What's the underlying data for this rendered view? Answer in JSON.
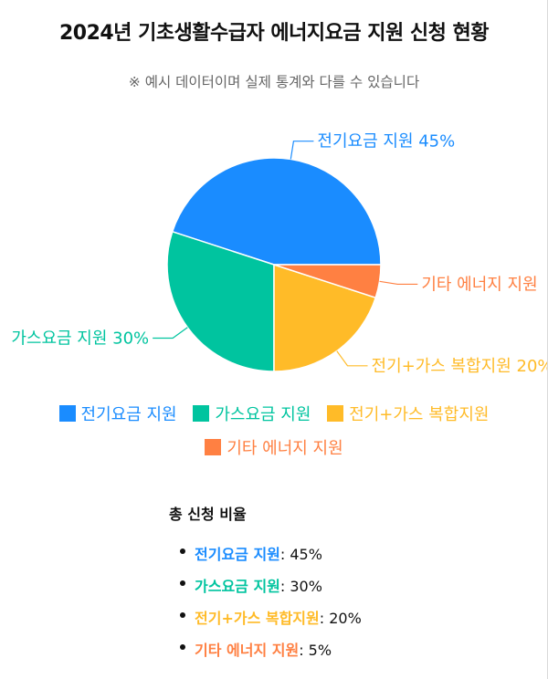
{
  "title": "2024년 기초생활수급자 에너지요금 지원 신청 현황",
  "subtitle": "※ 예시 데이터이며 실제 통계와 다를 수 있습니다",
  "chart_data": {
    "type": "pie",
    "title": "2024년 기초생활수급자 에너지요금 지원 신청 현황",
    "subtitle": "※ 예시 데이터이며 실제 통계와 다를 수 있습니다",
    "categories": [
      "전기요금 지원",
      "가스요금 지원",
      "전기+가스 복합지원",
      "기타 에너지 지원"
    ],
    "values": [
      45,
      30,
      20,
      5
    ],
    "unit": "%",
    "colors": [
      "#1a8cff",
      "#00c49f",
      "#ffbb28",
      "#ff8042"
    ],
    "slice_labels": [
      "전기요금 지원 45%",
      "가스요금 지원 30%",
      "전기+가스 복합지원 20%",
      "기타 에너지 지원"
    ],
    "legend_position": "bottom"
  },
  "legend": [
    {
      "label": "전기요금 지원",
      "color": "#1a8cff"
    },
    {
      "label": "가스요금 지원",
      "color": "#00c49f"
    },
    {
      "label": "전기+가스 복합지원",
      "color": "#ffbb28"
    },
    {
      "label": "기타 에너지 지원",
      "color": "#ff8042"
    }
  ],
  "summary": {
    "title": "총 신청 비율",
    "items": [
      {
        "name": "전기요금 지원",
        "value": ": 45%",
        "color": "#1a8cff"
      },
      {
        "name": "가스요금 지원",
        "value": ": 30%",
        "color": "#00c49f"
      },
      {
        "name": "전기+가스 복합지원",
        "value": ": 20%",
        "color": "#ffbb28"
      },
      {
        "name": "기타 에너지 지원",
        "value": ": 5%",
        "color": "#ff8042"
      }
    ]
  }
}
